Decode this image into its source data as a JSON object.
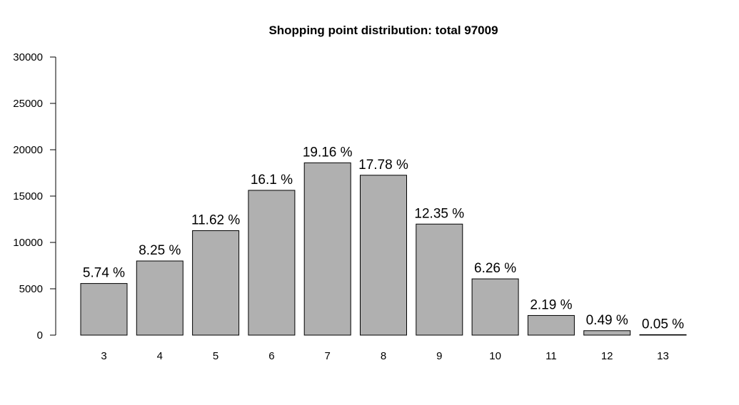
{
  "chart_data": {
    "type": "bar",
    "title": "Shopping point distribution: total  97009",
    "xlabel": "",
    "ylabel": "",
    "categories": [
      "3",
      "4",
      "5",
      "6",
      "7",
      "8",
      "9",
      "10",
      "11",
      "12",
      "13"
    ],
    "values": [
      5570,
      8000,
      11270,
      15620,
      18590,
      17250,
      11980,
      6070,
      2120,
      480,
      50
    ],
    "data_labels": [
      "5.74 %",
      "8.25 %",
      "11.62 %",
      "16.1 %",
      "19.16 %",
      "17.78 %",
      "12.35 %",
      "6.26 %",
      "2.19 %",
      "0.49 %",
      "0.05 %"
    ],
    "ylim": [
      0,
      30000
    ],
    "yticks": [
      "0",
      "5000",
      "10000",
      "15000",
      "20000",
      "25000",
      "30000"
    ],
    "grid": false,
    "colors": {
      "bar_fill": "#b0b0b0",
      "bar_stroke": "#000000"
    }
  }
}
